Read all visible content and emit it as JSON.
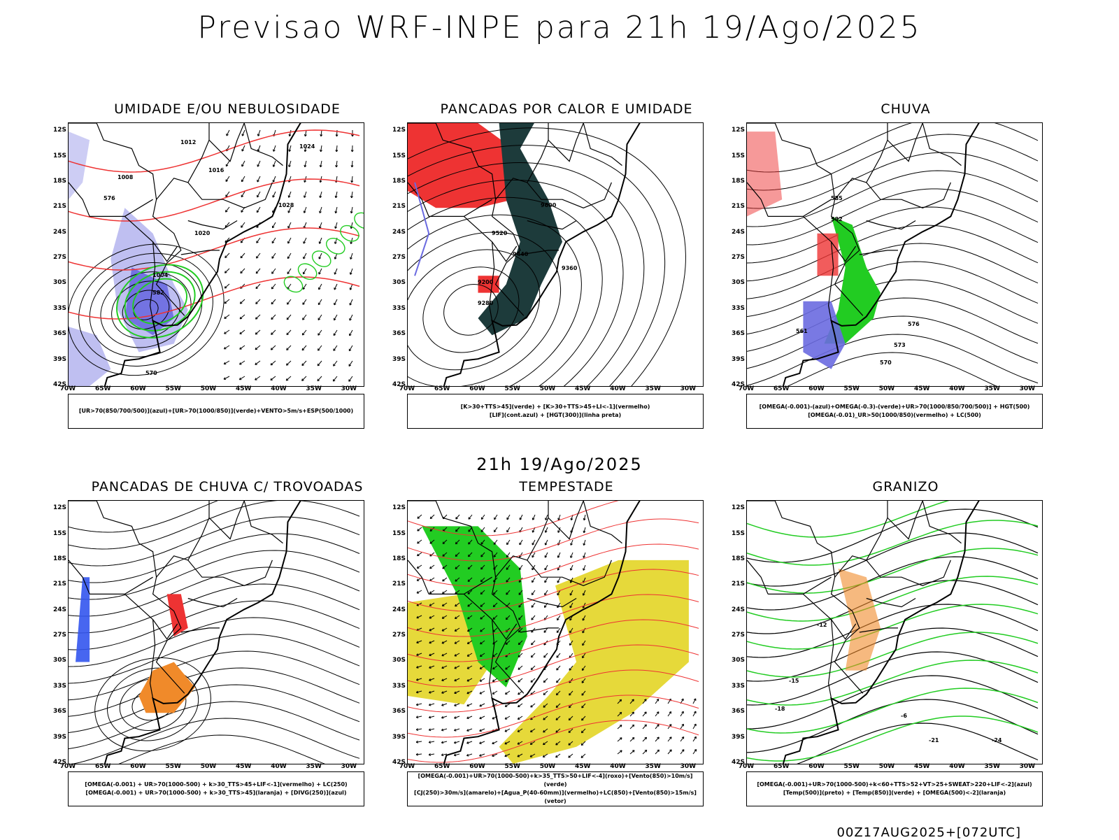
{
  "title": "Previsao WRF-INPE  para 21h 19/Ago/2025",
  "middle_date": "21h 19/Ago/2025",
  "footer": "00Z17AUG2025+[072UTC]",
  "latitudes": [
    "12S",
    "15S",
    "18S",
    "21S",
    "24S",
    "27S",
    "30S",
    "33S",
    "36S",
    "39S",
    "42S"
  ],
  "longitudes": [
    "70W",
    "65W",
    "60W",
    "55W",
    "50W",
    "45W",
    "40W",
    "35W",
    "30W"
  ],
  "colors": {
    "blue": "#6a6ae0",
    "lightblue": "#b8b8f0",
    "green": "#22cc22",
    "red": "#ee3333",
    "darkteal": "#1d3b3b",
    "orange": "#f08a2a",
    "yellow": "#e6d93a"
  },
  "panels": [
    {
      "id": "umidade",
      "title": "UMIDADE E/OU NEBULOSIDADE",
      "legend": [
        "[UR>70(850/700/500)](azul)+[UR>70(1000/850)](verde)+VENTO>5m/s+ESP(500/1000)"
      ],
      "contour_labels": [
        "1008",
        "1012",
        "1016",
        "1020",
        "1024",
        "1028",
        "1004",
        "570",
        "576",
        "582"
      ]
    },
    {
      "id": "pancadas_calor",
      "title": "PANCADAS POR CALOR E UMIDADE",
      "legend": [
        "[K>30+TTS>45](verde) + [K>30+TTS>45+LI<-1](vermelho)",
        "[LIF](cont.azul) + [HGT(300)](linha preta)"
      ],
      "contour_labels": [
        "9600",
        "9520",
        "9440",
        "9360",
        "9280",
        "9200"
      ]
    },
    {
      "id": "chuva",
      "title": "CHUVA",
      "legend": [
        "[OMEGA(-0.001)-(azul)+OMEGA(-0.3)-(verde)+UR>70(1000/850/700/500)] + HGT(500)",
        "[OMEGA(-0.01)_UR>50(1000/850)(vermelho) + LC(500)"
      ],
      "contour_labels": [
        "582",
        "576",
        "573",
        "570",
        "561",
        "585"
      ]
    },
    {
      "id": "pancadas_trovoadas",
      "title": "PANCADAS DE CHUVA C/ TROVOADAS",
      "legend": [
        "[OMEGA(-0.001) + UR>70(1000-500) + k>30_TTS>45+LIF<-1](vermelho) + LC(250)",
        "[OMEGA(-0.001) + UR>70(1000-500) + k>30_TTS>45](laranja) + [DIVG(250)](azul)"
      ],
      "contour_labels": []
    },
    {
      "id": "tempestade",
      "title": "TEMPESTADE",
      "legend": [
        "[OMEGA(-0.001)+UR>70(1000-500)+k>35_TTS>50+LIF<-4](roxo)+[Vento(850)>10m/s](verde)",
        "[CJ(250)>30m/s](amarelo)+[Agua_P(40-60mm)](vermelho)+LC(850)+[Vento(850)>15m/s](vetor)"
      ],
      "contour_labels": []
    },
    {
      "id": "granizo",
      "title": "GRANIZO",
      "legend": [
        "[OMEGA(-0.001)+UR>70(1000-500)+k<60+TTS>52+VT>25+SWEAT>220+LIF<-2](azul)",
        "[Temp(500)](preto) + [Temp(850)](verde) + [OMEGA(500)<-2](laranja)"
      ],
      "contour_labels": [
        "-12",
        "-15",
        "-18",
        "-21",
        "-24",
        "-6"
      ]
    }
  ]
}
